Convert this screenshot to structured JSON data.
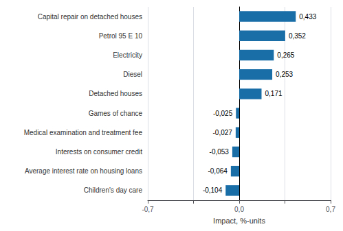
{
  "chart_data": {
    "type": "bar",
    "orientation": "horizontal",
    "categories": [
      "Children's day care",
      "Average interest rate on housing loans",
      "Interests on consumer credit",
      "Medical examination and treatment fee",
      "Games of chance",
      "Detached houses",
      "Diesel",
      "Electricity",
      "Petrol 95 E 10",
      "Capital repair on detached houses"
    ],
    "values": [
      -0.104,
      -0.064,
      -0.053,
      -0.027,
      -0.025,
      0.171,
      0.253,
      0.265,
      0.352,
      0.433
    ],
    "value_labels": [
      "-0,104",
      "-0,064",
      "-0,053",
      "-0,027",
      "-0,025",
      "0,171",
      "0,253",
      "0,265",
      "0,352",
      "0,433"
    ],
    "data_labels": true,
    "color": "#1a6ea8",
    "xlabel": "Impact, %-units",
    "xlim": [
      -0.7,
      0.7
    ],
    "xticks": [
      {
        "value": -0.7,
        "label": "-0,7"
      },
      {
        "value": -0.35,
        "label": null
      },
      {
        "value": 0.0,
        "label": "0,0"
      },
      {
        "value": 0.35,
        "label": null
      },
      {
        "value": 0.7,
        "label": "0,7"
      }
    ],
    "grid": true
  }
}
